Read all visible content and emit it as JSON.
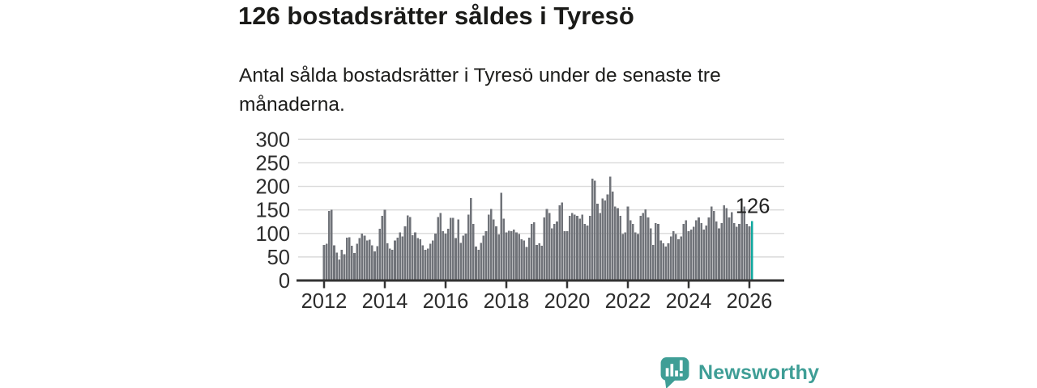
{
  "header": {
    "title": "126 bostadsrätter såldes i Tyresö",
    "subtitle": "Antal sålda bostadsrätter i Tyresö under de senaste tre månaderna."
  },
  "branding": {
    "name": "Newsworthy",
    "color": "#3f9e96",
    "icon": "bar-chart-speech-bubble-icon"
  },
  "colors": {
    "title_text": "#1a1a18",
    "axis_text": "#2d2d2d",
    "gridline": "#d9d9d9",
    "axis_line": "#333333"
  },
  "chart_data": {
    "type": "bar",
    "title": "126 bostadsrätter såldes i Tyresö",
    "subtitle": "Antal sålda bostadsrätter i Tyresö under de senaste tre månaderna.",
    "frequency": "monthly",
    "x_start": "2012-01",
    "x_end": "2026-02",
    "x_tick_labels": [
      "2012",
      "2014",
      "2016",
      "2018",
      "2020",
      "2022",
      "2024",
      "2026"
    ],
    "y_ticks": [
      0,
      50,
      100,
      150,
      200,
      250,
      300
    ],
    "ylim": [
      0,
      300
    ],
    "grid": true,
    "legend": "none",
    "bar_color": "#707379",
    "highlight_color": "#11a89f",
    "highlight_last": true,
    "highlight_value": 126,
    "highlight_label": "126",
    "values": [
      76,
      78,
      148,
      150,
      75,
      59,
      45,
      65,
      56,
      91,
      92,
      74,
      58,
      78,
      90,
      100,
      95,
      85,
      87,
      75,
      62,
      73,
      110,
      137,
      150,
      79,
      68,
      65,
      85,
      91,
      102,
      94,
      115,
      138,
      135,
      96,
      102,
      90,
      88,
      75,
      65,
      68,
      78,
      85,
      100,
      135,
      143,
      105,
      100,
      110,
      133,
      133,
      90,
      130,
      80,
      95,
      100,
      140,
      175,
      120,
      72,
      65,
      80,
      95,
      105,
      140,
      152,
      130,
      115,
      98,
      186,
      131,
      102,
      106,
      105,
      108,
      102,
      99,
      88,
      85,
      71,
      91,
      120,
      124,
      76,
      79,
      74,
      134,
      152,
      143,
      111,
      120,
      125,
      160,
      166,
      105,
      105,
      137,
      143,
      140,
      137,
      131,
      140,
      120,
      117,
      137,
      216,
      212,
      163,
      143,
      174,
      170,
      183,
      221,
      189,
      157,
      154,
      137,
      99,
      102,
      157,
      128,
      120,
      102,
      99,
      137,
      143,
      151,
      134,
      111,
      76,
      122,
      120,
      85,
      79,
      72,
      79,
      94,
      105,
      99,
      88,
      94,
      120,
      128,
      105,
      108,
      114,
      128,
      134,
      122,
      108,
      117,
      134,
      157,
      148,
      125,
      111,
      122,
      160,
      154,
      134,
      145,
      122,
      114,
      120,
      145,
      157,
      120,
      115,
      126
    ]
  }
}
